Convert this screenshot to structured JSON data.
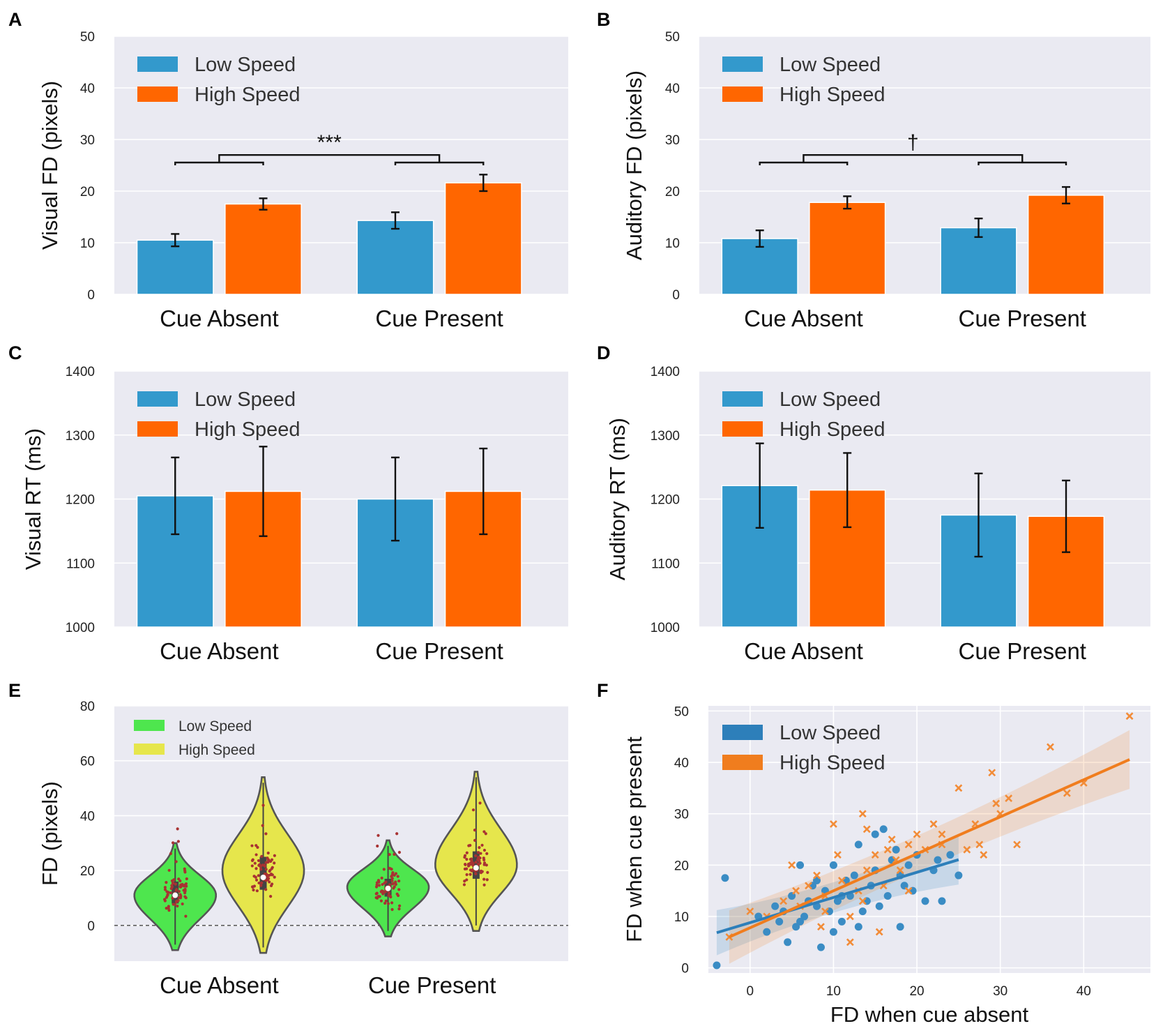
{
  "colors": {
    "low": "#3399cc",
    "high": "#ff6600",
    "violin_low": "#4ee64e",
    "violin_high": "#e6e64c",
    "scatter_low": "#3a8cc4",
    "scatter_high": "#f28c38",
    "points": "#a83232"
  },
  "panels": {
    "A": {
      "letter": "A",
      "ylabel": "Visual FD (pixels)",
      "legend": [
        "Low Speed",
        "High Speed"
      ],
      "significance": "***"
    },
    "B": {
      "letter": "B",
      "ylabel": "Auditory FD (pixels)",
      "legend": [
        "Low Speed",
        "High Speed"
      ],
      "significance": "†"
    },
    "C": {
      "letter": "C",
      "ylabel": "Visual RT (ms)",
      "legend": [
        "Low Speed",
        "High Speed"
      ]
    },
    "D": {
      "letter": "D",
      "ylabel": "Auditory RT (ms)",
      "legend": [
        "Low Speed",
        "High Speed"
      ]
    },
    "E": {
      "letter": "E",
      "ylabel": "FD (pixels)",
      "legend": [
        "Low Speed",
        "High Speed"
      ]
    },
    "F": {
      "letter": "F",
      "ylabel": "FD when cue present",
      "xlabel": "FD when cue absent",
      "legend": [
        "Low Speed",
        "High Speed"
      ]
    }
  },
  "chart_data": [
    {
      "panel": "A",
      "type": "bar",
      "categories": [
        "Cue Absent",
        "Cue Present"
      ],
      "series": [
        {
          "name": "Low Speed",
          "values": [
            10.5,
            14.3
          ],
          "errors": [
            1.2,
            1.6
          ]
        },
        {
          "name": "High Speed",
          "values": [
            17.5,
            21.6
          ],
          "errors": [
            1.1,
            1.6
          ]
        }
      ],
      "ylabel": "Visual FD (pixels)",
      "ylim": [
        0,
        50
      ],
      "yticks": [
        0,
        10,
        20,
        30,
        40,
        50
      ],
      "annotation": "***"
    },
    {
      "panel": "B",
      "type": "bar",
      "categories": [
        "Cue Absent",
        "Cue Present"
      ],
      "series": [
        {
          "name": "Low Speed",
          "values": [
            10.8,
            12.9
          ],
          "errors": [
            1.6,
            1.8
          ]
        },
        {
          "name": "High Speed",
          "values": [
            17.8,
            19.2
          ],
          "errors": [
            1.2,
            1.6
          ]
        }
      ],
      "ylabel": "Auditory FD (pixels)",
      "ylim": [
        0,
        50
      ],
      "yticks": [
        0,
        10,
        20,
        30,
        40,
        50
      ],
      "annotation": "†"
    },
    {
      "panel": "C",
      "type": "bar",
      "categories": [
        "Cue Absent",
        "Cue Present"
      ],
      "series": [
        {
          "name": "Low Speed",
          "values": [
            1205,
            1200
          ],
          "errors": [
            60,
            65
          ]
        },
        {
          "name": "High Speed",
          "values": [
            1212,
            1212
          ],
          "errors": [
            70,
            67
          ]
        }
      ],
      "ylabel": "Visual RT (ms)",
      "ylim": [
        1000,
        1400
      ],
      "yticks": [
        1000,
        1100,
        1200,
        1300,
        1400
      ]
    },
    {
      "panel": "D",
      "type": "bar",
      "categories": [
        "Cue Absent",
        "Cue Present"
      ],
      "series": [
        {
          "name": "Low Speed",
          "values": [
            1221,
            1175
          ],
          "errors": [
            66,
            65
          ]
        },
        {
          "name": "High Speed",
          "values": [
            1214,
            1173
          ],
          "errors": [
            58,
            56
          ]
        }
      ],
      "ylabel": "Auditory RT (ms)",
      "ylim": [
        1000,
        1400
      ],
      "yticks": [
        1000,
        1100,
        1200,
        1300,
        1400
      ]
    },
    {
      "panel": "E",
      "type": "violin",
      "categories": [
        "Cue Absent",
        "Cue Present"
      ],
      "series": [
        {
          "name": "Low Speed",
          "medians": [
            11,
            13.5
          ],
          "q1": [
            8,
            10.5
          ],
          "q3": [
            16,
            17
          ],
          "min": [
            -9,
            -4
          ],
          "max": [
            30,
            31
          ],
          "mode": [
            11,
            14
          ]
        },
        {
          "name": "High Speed",
          "medians": [
            17.5,
            21
          ],
          "q1": [
            13,
            17
          ],
          "q3": [
            25,
            27
          ],
          "min": [
            -10,
            -2
          ],
          "max": [
            54,
            56
          ],
          "mode": [
            20,
            22
          ]
        }
      ],
      "ylabel": "FD (pixels)",
      "ylim": [
        -13,
        80
      ],
      "yticks": [
        0,
        20,
        40,
        60,
        80
      ],
      "reference_line": 0
    },
    {
      "panel": "F",
      "type": "scatter",
      "xlabel": "FD when cue absent",
      "ylabel": "FD when cue present",
      "xlim": [
        -5,
        48
      ],
      "ylim": [
        -1,
        51
      ],
      "xticks": [
        0,
        10,
        20,
        30,
        40
      ],
      "yticks": [
        0,
        10,
        20,
        30,
        40,
        50
      ],
      "series": [
        {
          "name": "Low Speed",
          "marker": "circle",
          "x": [
            -4,
            -3,
            1,
            2,
            3,
            3.5,
            4,
            4.5,
            5,
            5.5,
            6,
            6.5,
            7,
            7.5,
            8,
            8.5,
            9,
            9.5,
            10,
            10.5,
            11,
            11.5,
            12,
            12.5,
            13,
            13.5,
            14,
            14.5,
            15,
            15.5,
            16,
            16.5,
            17,
            17.5,
            18,
            18.5,
            19,
            19.5,
            20,
            21,
            22,
            22.5,
            23,
            24,
            25,
            13,
            8,
            10,
            6,
            11,
            15,
            18
          ],
          "y": [
            0.5,
            17.5,
            10,
            7,
            12,
            9,
            11,
            5,
            14,
            8,
            20,
            10,
            13,
            16,
            12,
            4,
            15,
            11,
            7,
            13,
            9,
            17,
            14,
            18,
            24,
            11,
            13,
            16,
            19,
            12,
            27,
            14,
            21,
            23,
            18,
            16,
            20,
            15,
            22,
            13,
            19,
            21,
            13,
            22,
            18,
            8,
            17,
            20,
            9,
            14,
            26,
            8
          ]
        },
        {
          "name": "High Speed",
          "marker": "x",
          "x": [
            -2.5,
            0,
            2,
            4,
            5,
            5.5,
            6,
            7,
            8,
            8.5,
            9,
            10,
            10.5,
            11,
            12,
            13,
            13.5,
            14,
            15,
            15.5,
            16,
            16.5,
            17,
            17.5,
            18,
            19,
            20,
            21,
            22,
            23,
            25,
            26,
            27,
            27.5,
            28,
            29,
            29.5,
            30,
            31,
            32,
            36,
            38,
            40,
            45.5,
            9,
            12,
            14,
            19,
            13.5,
            23
          ],
          "y": [
            6,
            11,
            10,
            13,
            20,
            15,
            12,
            16,
            18,
            8,
            14,
            28,
            22,
            17,
            5,
            15,
            30,
            19,
            22,
            7,
            16,
            23,
            25,
            21,
            19,
            24,
            26,
            23,
            28,
            24,
            35,
            23,
            28,
            24,
            22,
            38,
            32,
            30,
            33,
            24,
            43,
            34,
            36,
            49,
            11,
            10,
            27,
            15,
            13,
            26
          ]
        }
      ],
      "fits": [
        {
          "name": "Low Speed",
          "x0": -4,
          "x1": 25,
          "slope": 0.49,
          "intercept": 8.8
        },
        {
          "name": "High Speed",
          "x0": -2.5,
          "x1": 45.5,
          "slope": 0.72,
          "intercept": 7.8
        }
      ]
    }
  ]
}
